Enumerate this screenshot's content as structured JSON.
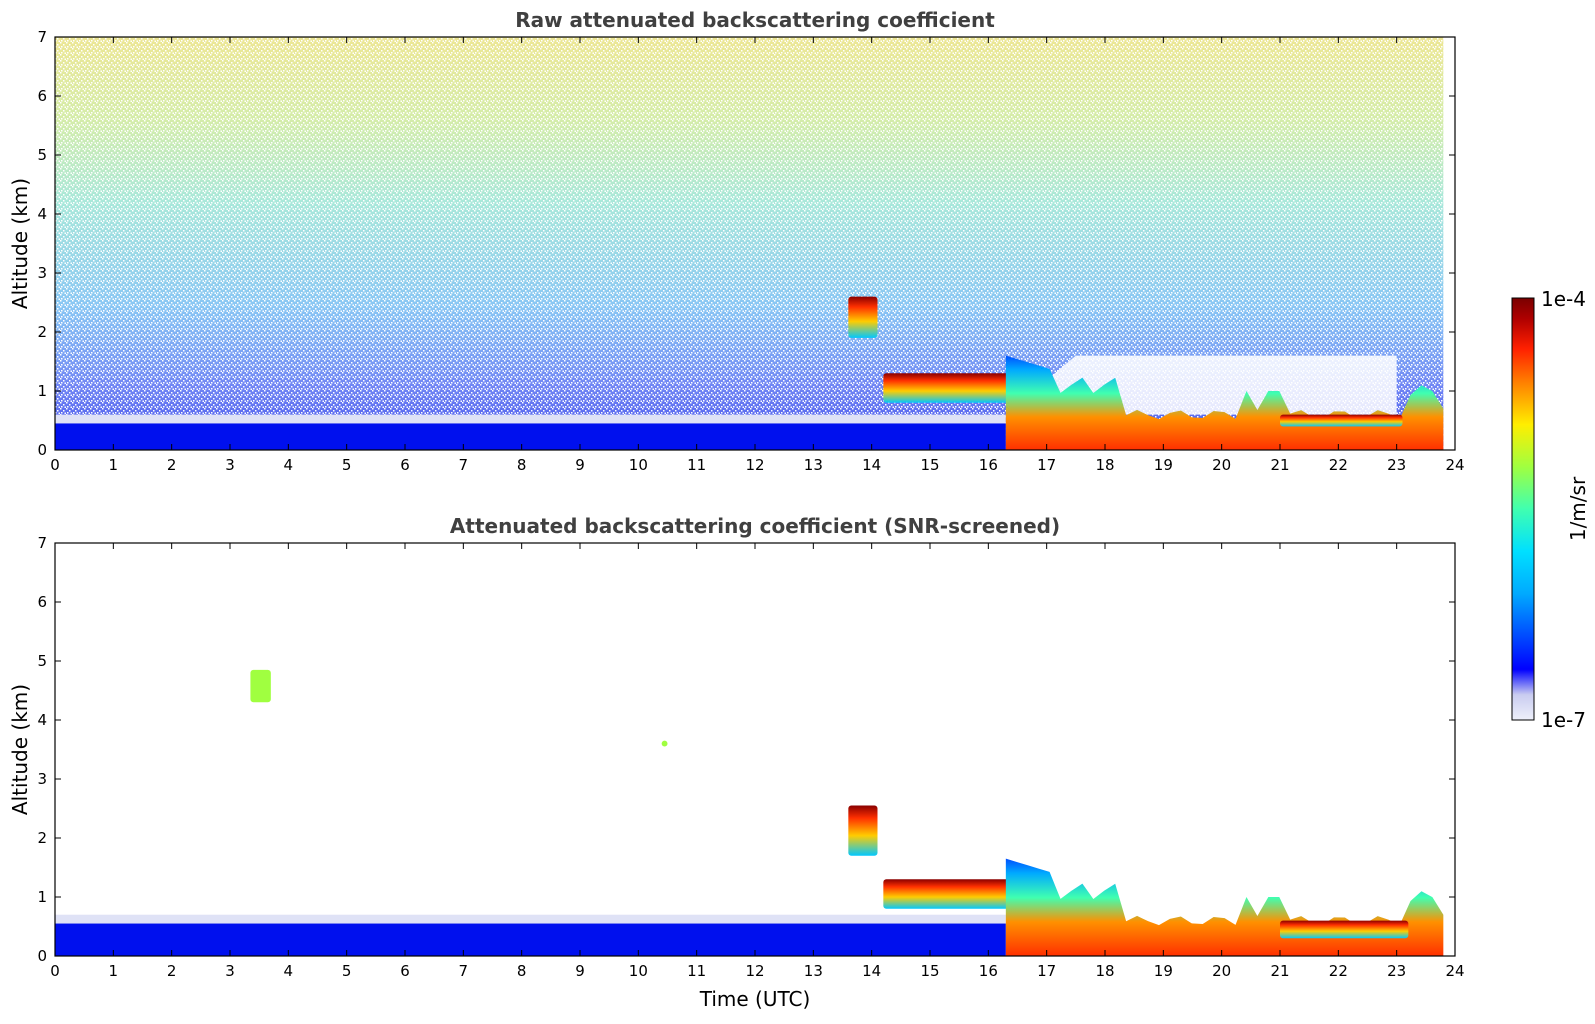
{
  "chart_data": [
    {
      "type": "heatmap",
      "title": "Raw attenuated backscattering coefficient",
      "xlabel": "",
      "ylabel": "Altitude (km)",
      "xlim": [
        0,
        24
      ],
      "ylim": [
        0,
        7
      ],
      "x_ticks": [
        "0",
        "1",
        "2",
        "3",
        "4",
        "5",
        "6",
        "7",
        "8",
        "9",
        "10",
        "11",
        "12",
        "13",
        "14",
        "15",
        "16",
        "17",
        "18",
        "19",
        "20",
        "21",
        "22",
        "23",
        "24"
      ],
      "y_ticks": [
        "0",
        "1",
        "2",
        "3",
        "4",
        "5",
        "6",
        "7"
      ],
      "features": [
        {
          "name": "surface aerosol layer",
          "t_start": 0,
          "t_end": 16.3,
          "alt_top": 0.45,
          "level": "low-blue"
        },
        {
          "name": "elevated cloud",
          "t_start": 13.6,
          "t_end": 14.1,
          "alt_bottom": 1.9,
          "alt_top": 2.6,
          "level": "high"
        },
        {
          "name": "cloud base layer",
          "t_start": 14.2,
          "t_end": 16.4,
          "alt_bottom": 0.8,
          "alt_top": 1.3,
          "level": "high"
        },
        {
          "name": "boundary layer after 16.3 UTC",
          "t_start": 16.3,
          "t_end": 23.8,
          "alt_top": 1.6,
          "level": "high"
        },
        {
          "name": "evening cloud layer",
          "t_start": 21.0,
          "t_end": 23.1,
          "alt_bottom": 0.4,
          "alt_top": 0.6,
          "level": "high"
        }
      ]
    },
    {
      "type": "heatmap",
      "title": "Attenuated backscattering coefficient (SNR-screened)",
      "xlabel": "Time (UTC)",
      "ylabel": "Altitude (km)",
      "xlim": [
        0,
        24
      ],
      "ylim": [
        0,
        7
      ],
      "x_ticks": [
        "0",
        "1",
        "2",
        "3",
        "4",
        "5",
        "6",
        "7",
        "8",
        "9",
        "10",
        "11",
        "12",
        "13",
        "14",
        "15",
        "16",
        "17",
        "18",
        "19",
        "20",
        "21",
        "22",
        "23",
        "24"
      ],
      "y_ticks": [
        "0",
        "1",
        "2",
        "3",
        "4",
        "5",
        "6",
        "7"
      ],
      "features": [
        {
          "name": "surface aerosol layer",
          "t_start": 0,
          "t_end": 16.3,
          "alt_top": 0.55,
          "level": "low-blue"
        },
        {
          "name": "isolated signal",
          "t_start": 3.35,
          "t_end": 3.7,
          "alt_bottom": 4.3,
          "alt_top": 4.85,
          "level": "mid"
        },
        {
          "name": "isolated signal",
          "t_start": 10.4,
          "t_end": 10.5,
          "alt_bottom": 3.55,
          "alt_top": 3.65,
          "level": "mid"
        },
        {
          "name": "elevated cloud",
          "t_start": 13.6,
          "t_end": 14.1,
          "alt_bottom": 1.7,
          "alt_top": 2.55,
          "level": "high"
        },
        {
          "name": "cloud base layer",
          "t_start": 14.2,
          "t_end": 16.4,
          "alt_bottom": 0.8,
          "alt_top": 1.3,
          "level": "high"
        },
        {
          "name": "boundary layer after 16.3 UTC",
          "t_start": 16.3,
          "t_end": 23.8,
          "alt_top": 1.65,
          "level": "high"
        },
        {
          "name": "evening cloud layer",
          "t_start": 21.0,
          "t_end": 23.2,
          "alt_bottom": 0.3,
          "alt_top": 0.6,
          "level": "high"
        }
      ]
    }
  ],
  "colorbar": {
    "label": "1/m/sr",
    "max_label": "1e-4",
    "min_label": "1e-7",
    "scale": "log",
    "colormap": [
      "#eef0fa",
      "#c9ccf0",
      "#0000ff",
      "#00aaff",
      "#00e0ff",
      "#40ffb0",
      "#a0ff40",
      "#ffee00",
      "#ff8000",
      "#ff2000",
      "#b00000",
      "#7a0000"
    ]
  }
}
